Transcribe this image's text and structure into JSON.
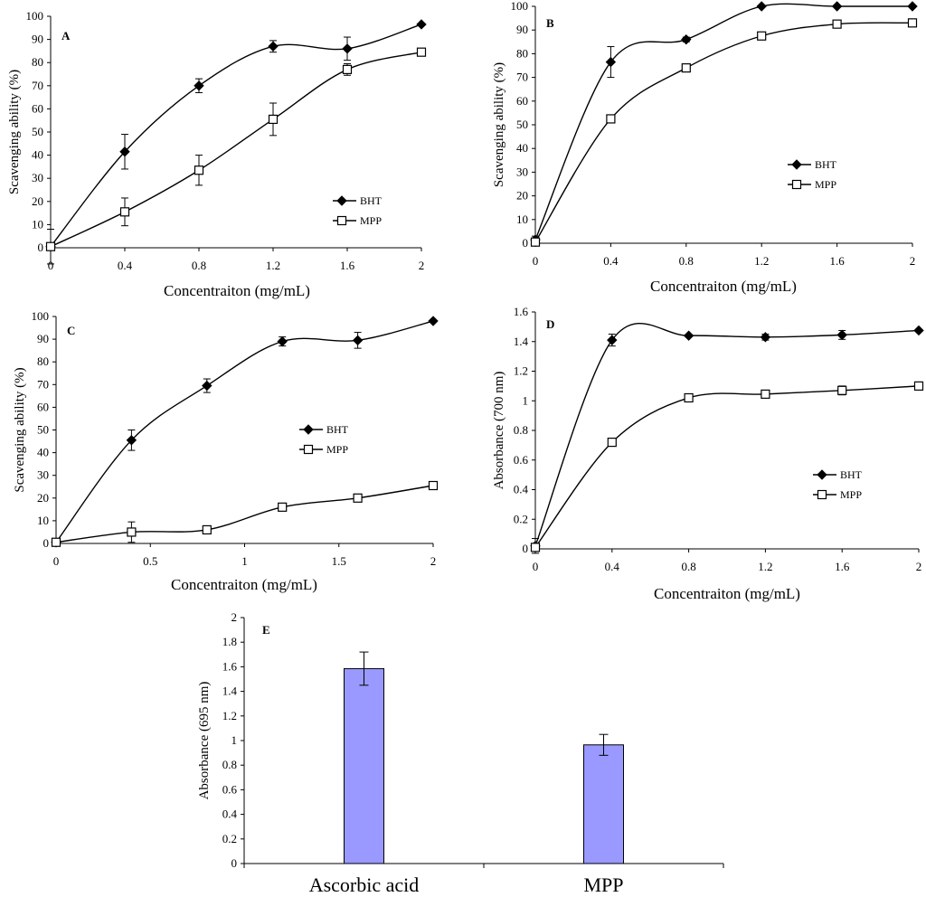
{
  "chart_data": [
    {
      "id": "A",
      "type": "line",
      "panel_label": "A",
      "xlabel": "Concentraiton (mg/mL)",
      "ylabel": "Scavenging ability (%)",
      "xlim": [
        0,
        2
      ],
      "ylim": [
        0,
        100
      ],
      "xticks": [
        0,
        0.4,
        0.8,
        1.2,
        1.6,
        2
      ],
      "xtick_labels": [
        "0",
        "0.4",
        "0.8",
        "1.2",
        "1.6",
        "2"
      ],
      "yticks": [
        0,
        10,
        20,
        30,
        40,
        50,
        60,
        70,
        80,
        90,
        100
      ],
      "ytick_labels": [
        "0",
        "10",
        "20",
        "30",
        "40",
        "50",
        "60",
        "70",
        "80",
        "90",
        "100"
      ],
      "legend_position": "bottom-right",
      "grid": false,
      "x": [
        0,
        0.4,
        0.8,
        1.2,
        1.6,
        2
      ],
      "series": [
        {
          "name": "BHT",
          "marker": "diamond",
          "values": [
            0.5,
            41.5,
            70,
            87,
            86,
            96.5
          ],
          "errors": [
            7.5,
            7.5,
            3,
            2.5,
            5,
            0
          ]
        },
        {
          "name": "MPP",
          "marker": "square",
          "values": [
            0.5,
            15.5,
            33.5,
            55.5,
            77,
            84.5
          ],
          "errors": [
            0,
            6,
            6.5,
            7,
            2.5,
            0
          ]
        }
      ]
    },
    {
      "id": "B",
      "type": "line",
      "panel_label": "B",
      "xlabel": "Concentraiton (mg/mL)",
      "ylabel": "Scavenging ability (%)",
      "xlim": [
        0,
        2
      ],
      "ylim": [
        0,
        100
      ],
      "xticks": [
        0,
        0.4,
        0.8,
        1.2,
        1.6,
        2
      ],
      "xtick_labels": [
        "0",
        "0.4",
        "0.8",
        "1.2",
        "1.6",
        "2"
      ],
      "yticks": [
        0,
        10,
        20,
        30,
        40,
        50,
        60,
        70,
        80,
        90,
        100
      ],
      "ytick_labels": [
        "0",
        "10",
        "20",
        "30",
        "40",
        "50",
        "60",
        "70",
        "80",
        "90",
        "100"
      ],
      "legend_position": "right",
      "grid": false,
      "x": [
        0,
        0.4,
        0.8,
        1.2,
        1.6,
        2
      ],
      "series": [
        {
          "name": "BHT",
          "marker": "diamond",
          "values": [
            1.5,
            76.5,
            86,
            100,
            100,
            100
          ],
          "errors": [
            1.5,
            6.5,
            1,
            0,
            0,
            0
          ]
        },
        {
          "name": "MPP",
          "marker": "square",
          "values": [
            0.5,
            52.5,
            74,
            87.5,
            92.5,
            93
          ],
          "errors": [
            0,
            0,
            1.5,
            0,
            0,
            0
          ]
        }
      ]
    },
    {
      "id": "C",
      "type": "line",
      "panel_label": "C",
      "xlabel": "Concentraiton (mg/mL)",
      "ylabel": "Scavenging ability (%)",
      "xlim": [
        0,
        2
      ],
      "ylim": [
        0,
        100
      ],
      "xticks": [
        0,
        0.5,
        1,
        1.5,
        2
      ],
      "xtick_labels": [
        "0",
        "0.5",
        "1",
        "1.5",
        "2"
      ],
      "yticks": [
        0,
        10,
        20,
        30,
        40,
        50,
        60,
        70,
        80,
        90,
        100
      ],
      "ytick_labels": [
        "0",
        "10",
        "20",
        "30",
        "40",
        "50",
        "60",
        "70",
        "80",
        "90",
        "100"
      ],
      "legend_position": "right",
      "grid": false,
      "x": [
        0,
        0.4,
        0.8,
        1.2,
        1.6,
        2
      ],
      "series": [
        {
          "name": "BHT",
          "marker": "diamond",
          "values": [
            0.5,
            45.5,
            69.5,
            89,
            89.5,
            98
          ],
          "errors": [
            0,
            4.5,
            3,
            2,
            3.5,
            0
          ]
        },
        {
          "name": "MPP",
          "marker": "square",
          "values": [
            0.5,
            5,
            6,
            16,
            20,
            25.5
          ],
          "errors": [
            0,
            4.5,
            1.5,
            0,
            0,
            0
          ]
        }
      ]
    },
    {
      "id": "D",
      "type": "line",
      "panel_label": "D",
      "xlabel": "Concentraiton (mg/mL)",
      "ylabel": "Absorbance (700 nm)",
      "xlim": [
        0,
        2
      ],
      "ylim": [
        0,
        1.6
      ],
      "xticks": [
        0,
        0.4,
        0.8,
        1.2,
        1.6,
        2
      ],
      "xtick_labels": [
        "0",
        "0.4",
        "0.8",
        "1.2",
        "1.6",
        "2"
      ],
      "yticks": [
        0,
        0.2,
        0.4,
        0.6,
        0.8,
        1,
        1.2,
        1.4,
        1.6
      ],
      "ytick_labels": [
        "0",
        "0.2",
        "0.4",
        "0.6",
        "0.8",
        "1",
        "1.2",
        "1.4",
        "1.6"
      ],
      "legend_position": "bottom-right",
      "grid": false,
      "x": [
        0,
        0.4,
        0.8,
        1.2,
        1.6,
        2
      ],
      "series": [
        {
          "name": "BHT",
          "marker": "diamond",
          "values": [
            0.02,
            1.41,
            1.44,
            1.43,
            1.445,
            1.475
          ],
          "errors": [
            0.05,
            0.04,
            0,
            0.02,
            0.03,
            0
          ]
        },
        {
          "name": "MPP",
          "marker": "square",
          "values": [
            0.01,
            0.72,
            1.02,
            1.045,
            1.07,
            1.1
          ],
          "errors": [
            0,
            0,
            0,
            0,
            0.03,
            0
          ]
        }
      ]
    },
    {
      "id": "E",
      "type": "bar",
      "panel_label": "E",
      "xlabel": "",
      "ylabel": "Absorbance (695 nm)",
      "ylim": [
        0,
        2
      ],
      "yticks": [
        0,
        0.2,
        0.4,
        0.6,
        0.8,
        1,
        1.2,
        1.4,
        1.6,
        1.8,
        2
      ],
      "ytick_labels": [
        "0",
        "0.2",
        "0.4",
        "0.6",
        "0.8",
        "1",
        "1.2",
        "1.4",
        "1.6",
        "1.8",
        "2"
      ],
      "categories": [
        "Ascorbic acid",
        "MPP"
      ],
      "values": [
        1.585,
        0.965
      ],
      "errors": [
        0.135,
        0.085
      ],
      "bar_color": "#9999ff",
      "grid": false
    }
  ]
}
